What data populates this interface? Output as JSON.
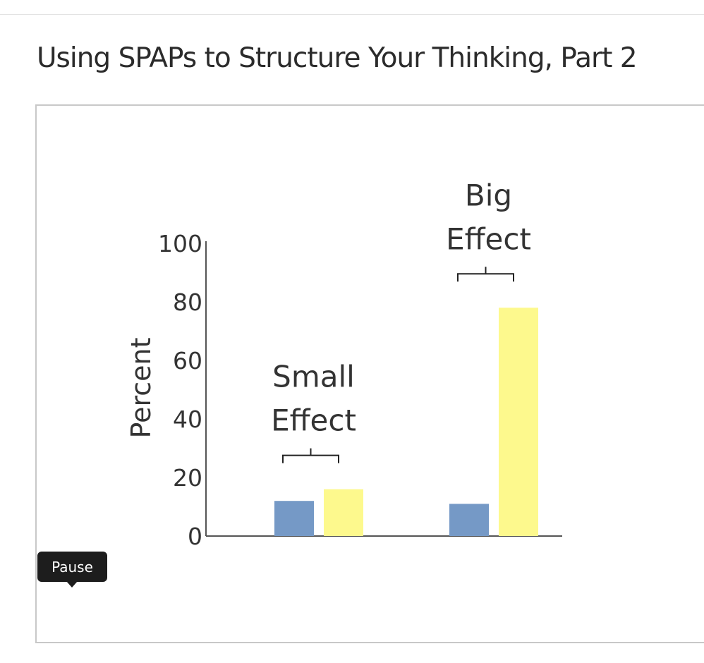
{
  "page": {
    "title": "Using SPAPs to Structure Your Thinking, Part 2"
  },
  "video": {
    "pause_label": "Pause"
  },
  "chart_data": {
    "type": "bar",
    "title": "",
    "xlabel": "",
    "ylabel": "Percent",
    "ylim": [
      0,
      100
    ],
    "yticks": [
      0,
      20,
      40,
      60,
      80,
      100
    ],
    "grid": false,
    "groups": [
      {
        "label_lines": [
          "Small",
          "Effect"
        ],
        "values": [
          {
            "value": 12,
            "color": "#7599c6"
          },
          {
            "value": 16,
            "color": "#fdf98d"
          }
        ]
      },
      {
        "label_lines": [
          "Big",
          "Effect"
        ],
        "values": [
          {
            "value": 11,
            "color": "#7599c6"
          },
          {
            "value": 78,
            "color": "#fdf98d"
          }
        ]
      }
    ]
  }
}
